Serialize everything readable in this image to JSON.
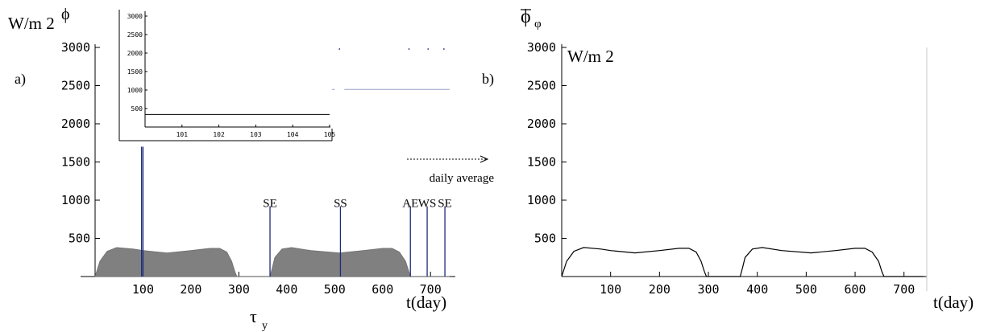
{
  "chart_data": [
    {
      "panel": "a)",
      "type": "area",
      "y_unit": "W/m 2",
      "phi_label": "ϕ",
      "xlabel": "t(day)",
      "x_symbol": "τ",
      "x_symbol_sub": "y",
      "xlim": [
        0,
        740
      ],
      "ylim": [
        0,
        3000
      ],
      "x_ticks": [
        "100",
        "200",
        "300",
        "400",
        "500",
        "600",
        "700"
      ],
      "y_ticks": [
        "500",
        "1000",
        "1500",
        "2000",
        "2500",
        "3000"
      ],
      "legend_text": "daily average",
      "daily_average": {
        "x": [
          0,
          10,
          25,
          45,
          80,
          100,
          150,
          200,
          240,
          260,
          275,
          285,
          292,
          296,
          365,
          370,
          375,
          390,
          410,
          450,
          510,
          560,
          600,
          620,
          635,
          648,
          655,
          659,
          740
        ],
        "y": [
          0,
          200,
          330,
          380,
          360,
          340,
          310,
          340,
          370,
          370,
          320,
          200,
          60,
          0,
          0,
          120,
          250,
          360,
          380,
          340,
          310,
          340,
          370,
          370,
          320,
          200,
          60,
          0,
          0
        ]
      },
      "event_lines": [
        {
          "label": "",
          "x": 97,
          "y": 1700
        },
        {
          "label": "",
          "x": 100,
          "y": 1700
        },
        {
          "label": "SE",
          "x": 365,
          "y": 920
        },
        {
          "label": "SS",
          "x": 512,
          "y": 920
        },
        {
          "label": "AE",
          "x": 658,
          "y": 920
        },
        {
          "label": "WS",
          "x": 693,
          "y": 920
        },
        {
          "label": "SE",
          "x": 730,
          "y": 920
        }
      ],
      "top_line_y": 2450,
      "top_dots_x": [
        365,
        510,
        655,
        695,
        728
      ]
    },
    {
      "panel": "inset",
      "type": "line",
      "xlim": [
        100,
        105
      ],
      "ylim": [
        0,
        3000
      ],
      "x_ticks": [
        "101",
        "102",
        "103",
        "104",
        "105"
      ],
      "y_ticks": [
        "500",
        "1000",
        "1500",
        "2000",
        "2500",
        "3000"
      ],
      "series": [
        {
          "x": [
            100,
            105
          ],
          "y": [
            340,
            340
          ]
        }
      ]
    },
    {
      "panel": "b)",
      "type": "line",
      "y_unit": "W/m 2",
      "title_symbol": "ϕ",
      "title_sub": "φ",
      "xlabel": "t(day)",
      "xlim": [
        0,
        740
      ],
      "ylim": [
        0,
        3000
      ],
      "x_ticks": [
        "100",
        "200",
        "300",
        "400",
        "500",
        "600",
        "700"
      ],
      "y_ticks": [
        "500",
        "1000",
        "1500",
        "2000",
        "2500",
        "3000"
      ],
      "series": [
        {
          "x": [
            0,
            10,
            25,
            45,
            80,
            100,
            150,
            200,
            240,
            260,
            275,
            285,
            292,
            296,
            365,
            370,
            375,
            390,
            410,
            450,
            510,
            560,
            600,
            620,
            635,
            648,
            655,
            659,
            740
          ],
          "y": [
            0,
            200,
            330,
            380,
            360,
            340,
            310,
            340,
            370,
            370,
            320,
            200,
            60,
            0,
            0,
            120,
            250,
            360,
            380,
            340,
            310,
            340,
            370,
            370,
            320,
            200,
            60,
            0,
            0
          ]
        }
      ]
    }
  ]
}
